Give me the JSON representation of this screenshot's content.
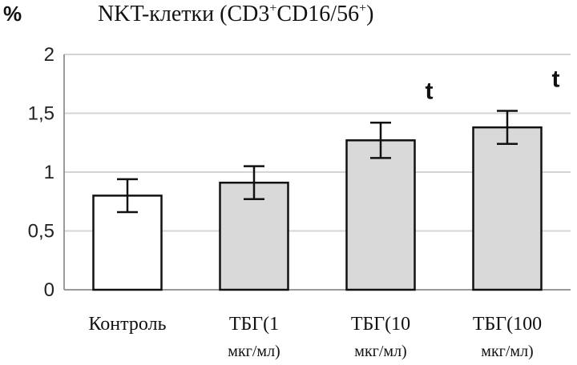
{
  "chart_data": {
    "type": "bar",
    "title_main": "NKT-клетки  (CD3",
    "title_sup1": "+",
    "title_mid": "CD16/56",
    "title_sup2": "+",
    "title_end": ")",
    "ylabel": "%",
    "ylim": [
      0,
      2
    ],
    "yticks": [
      "0",
      "0,5",
      "1",
      "1,5",
      "2"
    ],
    "grid": true,
    "categories": [
      {
        "line1": "Контроль",
        "line2": ""
      },
      {
        "line1": "ТБГ(1",
        "line2": "мкг/мл)"
      },
      {
        "line1": "ТБГ(10",
        "line2": "мкг/мл)"
      },
      {
        "line1": "ТБГ(100",
        "line2": "мкг/мл)"
      }
    ],
    "values": [
      0.8,
      0.91,
      1.27,
      1.38
    ],
    "errors": [
      0.14,
      0.14,
      0.15,
      0.14
    ],
    "bar_colors": [
      "#ffffff",
      "#d9d9d9",
      "#d9d9d9",
      "#d9d9d9"
    ],
    "significance": [
      "",
      "",
      "t",
      "t"
    ]
  }
}
